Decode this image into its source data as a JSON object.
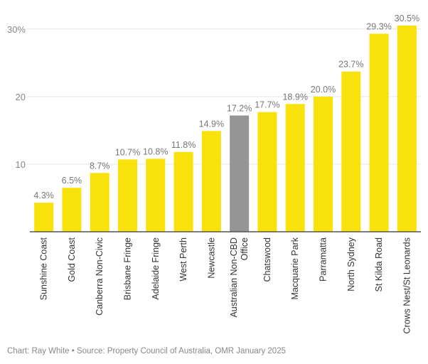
{
  "colors": {
    "bar": "#f9e10b",
    "highlight": "#939597",
    "grid": "#e5e5e5",
    "axis": "#555555"
  },
  "caption": "Chart: Ray White • Source: Property Council of Australia, OMR January 2025",
  "chart_data": {
    "type": "bar",
    "title": "",
    "xlabel": "",
    "ylabel": "",
    "ylim": [
      0,
      30.5
    ],
    "grid": true,
    "yticks": [
      {
        "value": 10,
        "label": "10"
      },
      {
        "value": 20,
        "label": "20"
      },
      {
        "value": 30,
        "label": "30%"
      }
    ],
    "categories": [
      [
        "Sunshine Coast"
      ],
      [
        "Gold Coast"
      ],
      [
        "Canberra Non-Civic"
      ],
      [
        "Brisbane Fringe"
      ],
      [
        "Adelaide Fringe"
      ],
      [
        "West Perth"
      ],
      [
        "Newcastle"
      ],
      [
        "Australian Non-CBD",
        "Office"
      ],
      [
        "Chatswood"
      ],
      [
        "Macquarie Park"
      ],
      [
        "Parramatta"
      ],
      [
        "North Sydney"
      ],
      [
        "St Kilda Road"
      ],
      [
        "Crows Nest/St Leonards"
      ]
    ],
    "values": [
      4.3,
      6.5,
      8.7,
      10.7,
      10.8,
      11.8,
      14.9,
      17.2,
      17.7,
      18.9,
      20.0,
      23.7,
      29.3,
      30.5
    ],
    "value_labels": [
      "4.3%",
      "6.5%",
      "8.7%",
      "10.7%",
      "10.8%",
      "11.8%",
      "14.9%",
      "17.2%",
      "17.7%",
      "18.9%",
      "20.0%",
      "23.7%",
      "29.3%",
      "30.5%"
    ],
    "highlight_index": 7
  }
}
